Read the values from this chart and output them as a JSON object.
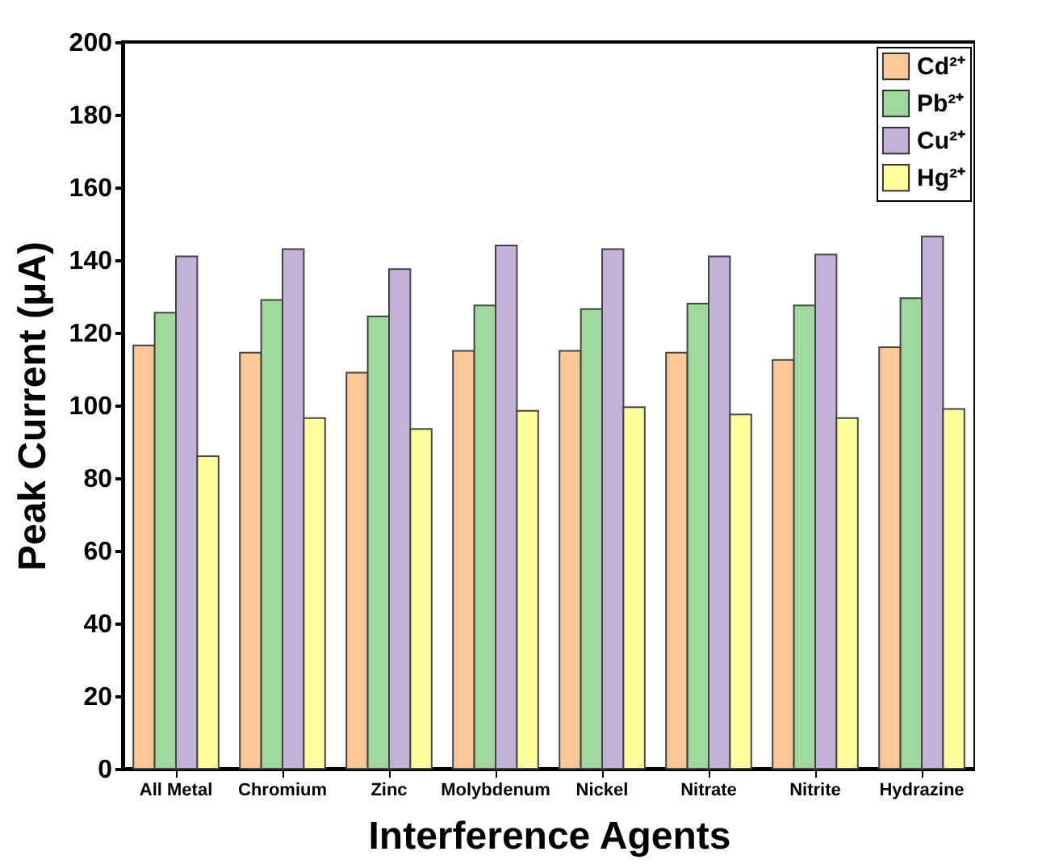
{
  "chart_data": {
    "type": "bar",
    "xlabel": "Interference Agents",
    "ylabel": "Peak Current (μA)",
    "categories": [
      "All Metal",
      "Chromium",
      "Zinc",
      "Molybdenum",
      "Nickel",
      "Nitrate",
      "Nitrite",
      "Hydrazine"
    ],
    "series": [
      {
        "name": "Cd²⁺",
        "color": "#fdc896",
        "values": [
          116.5,
          114.5,
          109,
          115,
          115,
          114.5,
          112.5,
          116
        ]
      },
      {
        "name": "Pb²⁺",
        "color": "#9ed89c",
        "values": [
          125.5,
          129,
          124.5,
          127.5,
          126.5,
          128,
          127.5,
          129.5
        ]
      },
      {
        "name": "Cu²⁺",
        "color": "#c2b1d8",
        "values": [
          141,
          143,
          137.5,
          144,
          143,
          141,
          141.5,
          146.5
        ]
      },
      {
        "name": "Hg²⁺",
        "color": "#fefe9c",
        "values": [
          86,
          96.5,
          93.5,
          98.5,
          99.5,
          97.5,
          96.5,
          99
        ]
      }
    ],
    "ylim": [
      0,
      200
    ],
    "yticks": [
      0,
      20,
      40,
      60,
      80,
      100,
      120,
      140,
      160,
      180,
      200
    ],
    "legend": "top right",
    "grid": false
  }
}
